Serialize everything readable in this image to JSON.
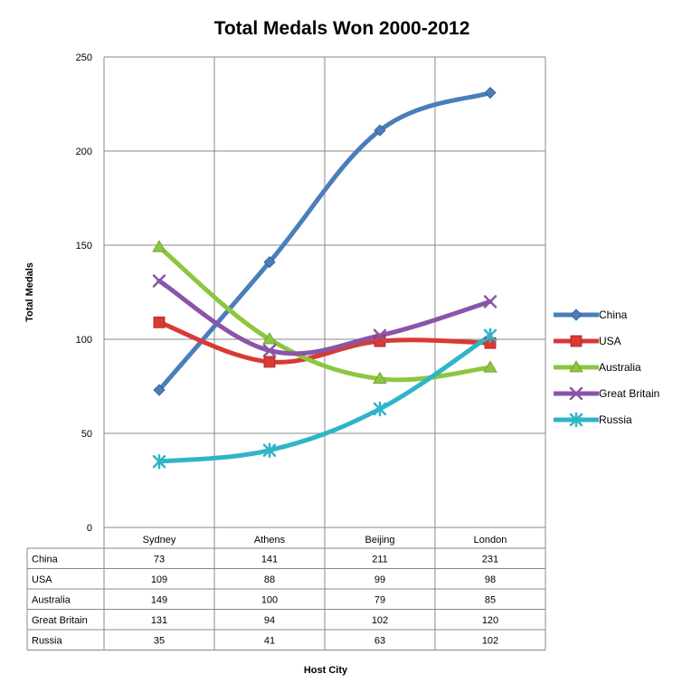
{
  "chart_data": {
    "type": "line",
    "title": "Total Medals Won 2000-2012",
    "xlabel": "Host City",
    "ylabel": "Total Medals",
    "categories": [
      "Sydney",
      "Athens",
      "Beijing",
      "London"
    ],
    "ylim": [
      0,
      250
    ],
    "yticks": [
      0,
      50,
      100,
      150,
      200,
      250
    ],
    "grid": true,
    "legend_position": "right",
    "data_table": true,
    "series": [
      {
        "name": "China",
        "values": [
          73,
          141,
          211,
          231
        ],
        "color": "#4a7ebb",
        "marker": "diamond"
      },
      {
        "name": "USA",
        "values": [
          109,
          88,
          99,
          98
        ],
        "color": "#d93a34",
        "marker": "square"
      },
      {
        "name": "Australia",
        "values": [
          149,
          100,
          79,
          85
        ],
        "color": "#8cc63e",
        "marker": "triangle"
      },
      {
        "name": "Great Britain",
        "values": [
          131,
          94,
          102,
          120
        ],
        "color": "#8a55a8",
        "marker": "x"
      },
      {
        "name": "Russia",
        "values": [
          35,
          41,
          63,
          102
        ],
        "color": "#2fb4c8",
        "marker": "star"
      }
    ]
  }
}
